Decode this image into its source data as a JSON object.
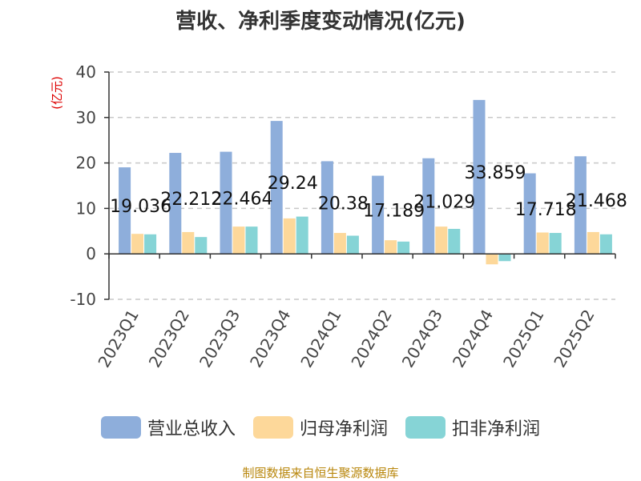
{
  "chart_data": {
    "type": "bar",
    "title": "营收、净利季度变动情况(亿元)",
    "ylabel": "(亿元)",
    "xlabel": "",
    "ylim": [
      -10,
      40
    ],
    "yticks": [
      40,
      30,
      20,
      10,
      0,
      -10
    ],
    "grid": true,
    "legend_position": "bottom",
    "categories": [
      "2023Q1",
      "2023Q2",
      "2023Q3",
      "2023Q4",
      "2024Q1",
      "2024Q2",
      "2024Q3",
      "2024Q4",
      "2025Q1",
      "2025Q2"
    ],
    "series": [
      {
        "name": "营业总收入",
        "color": "#8eaedb",
        "values": [
          19.036,
          22.212,
          22.464,
          29.24,
          20.38,
          17.189,
          21.029,
          33.859,
          17.718,
          21.468
        ],
        "labels": [
          "19.036",
          "22.212",
          "22.464",
          "29.24",
          "20.38",
          "17.189",
          "21.029",
          "33.859",
          "17.718",
          "21.468"
        ]
      },
      {
        "name": "归母净利润",
        "color": "#fdd89a",
        "values": [
          4.4,
          4.8,
          6.0,
          7.8,
          4.6,
          3.0,
          6.0,
          -2.3,
          4.7,
          4.8
        ]
      },
      {
        "name": "扣非净利润",
        "color": "#86d4d6",
        "values": [
          4.3,
          3.7,
          6.0,
          8.2,
          4.0,
          2.7,
          5.5,
          -1.6,
          4.6,
          4.3
        ]
      }
    ]
  },
  "source": "制图数据来自恒生聚源数据库"
}
